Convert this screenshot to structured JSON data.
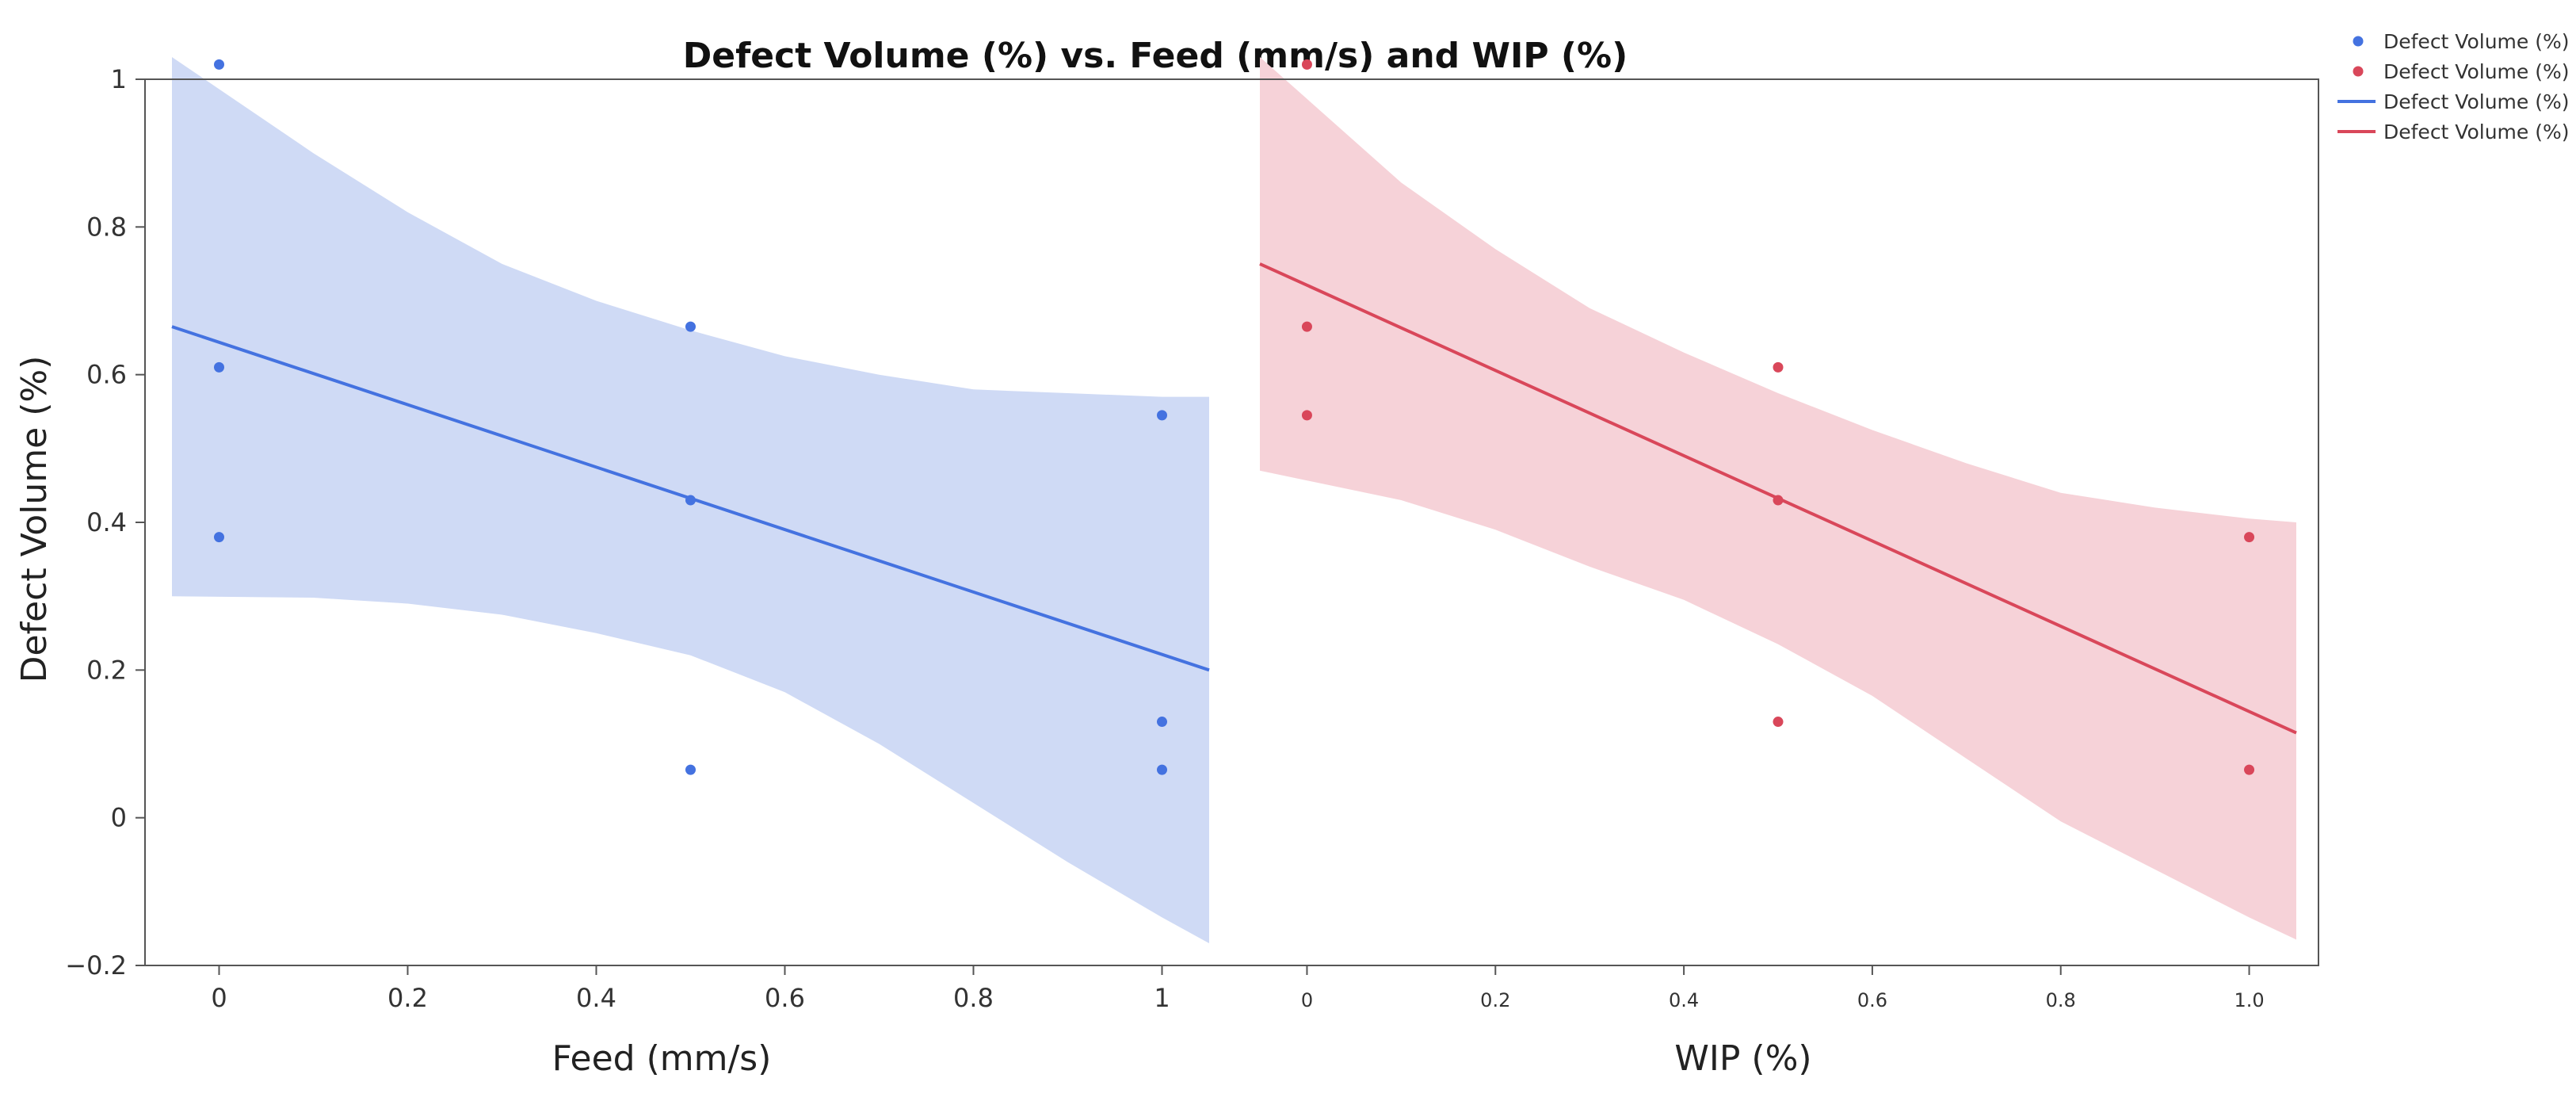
{
  "chart_data": {
    "type": "scatter",
    "title": "Defect Volume (%) vs. Feed (mm/s) and WIP (%)",
    "ylabel": "Defect Volume (%)",
    "ylim": [
      -0.2,
      1.0
    ],
    "y_ticks": [
      {
        "value": -0.2,
        "label": "−0.2"
      },
      {
        "value": 0,
        "label": "0"
      },
      {
        "value": 0.2,
        "label": "0.2"
      },
      {
        "value": 0.4,
        "label": "0.4"
      },
      {
        "value": 0.6,
        "label": "0.6"
      },
      {
        "value": 0.8,
        "label": "0.8"
      },
      {
        "value": 1.0,
        "label": "1"
      }
    ],
    "colors": {
      "blue": "#4472e0",
      "blue_band": "#cfdaf5",
      "red": "#d9475a",
      "red_band": "#f6d2d8"
    },
    "panels": [
      {
        "key": "left",
        "xlabel": "Feed (mm/s)",
        "xlim": [
          -0.05,
          1.05
        ],
        "x_ticks": [
          {
            "value": 0,
            "label": "0"
          },
          {
            "value": 0.2,
            "label": "0.2"
          },
          {
            "value": 0.4,
            "label": "0.4"
          },
          {
            "value": 0.6,
            "label": "0.6"
          },
          {
            "value": 0.8,
            "label": "0.8"
          },
          {
            "value": 1,
            "label": "1"
          }
        ],
        "color": "blue",
        "points": [
          {
            "x": 0,
            "y": 1.02
          },
          {
            "x": 0,
            "y": 0.61
          },
          {
            "x": 0,
            "y": 0.38
          },
          {
            "x": 0.5,
            "y": 0.665
          },
          {
            "x": 0.5,
            "y": 0.43
          },
          {
            "x": 0.5,
            "y": 0.065
          },
          {
            "x": 1,
            "y": 0.545
          },
          {
            "x": 1,
            "y": 0.13
          },
          {
            "x": 1,
            "y": 0.065
          }
        ],
        "fit": {
          "x": [
            -0.05,
            1.05
          ],
          "y": [
            0.665,
            0.2
          ]
        },
        "band": {
          "x": [
            -0.05,
            0.1,
            0.2,
            0.3,
            0.4,
            0.5,
            0.6,
            0.7,
            0.8,
            0.9,
            1.0,
            1.05
          ],
          "upper": [
            1.03,
            0.9,
            0.82,
            0.75,
            0.7,
            0.66,
            0.625,
            0.6,
            0.58,
            0.575,
            0.57,
            0.57
          ],
          "lower": [
            0.3,
            0.298,
            0.29,
            0.275,
            0.25,
            0.22,
            0.17,
            0.1,
            0.02,
            -0.06,
            -0.135,
            -0.17
          ]
        }
      },
      {
        "key": "right",
        "xlabel": "WIP (%)",
        "xlim": [
          -0.05,
          1.05
        ],
        "x_ticks": [
          {
            "value": 0,
            "label": "0"
          },
          {
            "value": 0.2,
            "label": "0.2"
          },
          {
            "value": 0.4,
            "label": "0.4"
          },
          {
            "value": 0.6,
            "label": "0.6"
          },
          {
            "value": 0.8,
            "label": "0.8"
          },
          {
            "value": 1.0,
            "label": "1.0"
          }
        ],
        "color": "red",
        "points": [
          {
            "x": 0,
            "y": 1.02
          },
          {
            "x": 0,
            "y": 0.665
          },
          {
            "x": 0,
            "y": 0.545
          },
          {
            "x": 0.5,
            "y": 0.61
          },
          {
            "x": 0.5,
            "y": 0.43
          },
          {
            "x": 0.5,
            "y": 0.13
          },
          {
            "x": 1,
            "y": 0.38
          },
          {
            "x": 1,
            "y": 0.065
          }
        ],
        "fit": {
          "x": [
            -0.05,
            1.05
          ],
          "y": [
            0.75,
            0.115
          ]
        },
        "band": {
          "x": [
            -0.05,
            0.1,
            0.2,
            0.3,
            0.4,
            0.5,
            0.6,
            0.7,
            0.8,
            0.9,
            1.0,
            1.05
          ],
          "upper": [
            1.03,
            0.86,
            0.77,
            0.69,
            0.63,
            0.575,
            0.525,
            0.48,
            0.44,
            0.42,
            0.405,
            0.4
          ],
          "lower": [
            0.47,
            0.43,
            0.39,
            0.34,
            0.295,
            0.235,
            0.165,
            0.08,
            -0.005,
            -0.07,
            -0.135,
            -0.165
          ]
        }
      }
    ],
    "legend": {
      "position": "top-right",
      "entries": [
        {
          "label": "Defect Volume (%)",
          "marker": "point",
          "color": "blue"
        },
        {
          "label": "Defect Volume (%)",
          "marker": "point",
          "color": "red"
        },
        {
          "label": "Defect Volume (%)",
          "marker": "line",
          "color": "blue"
        },
        {
          "label": "Defect Volume (%)",
          "marker": "line",
          "color": "red"
        }
      ]
    }
  }
}
